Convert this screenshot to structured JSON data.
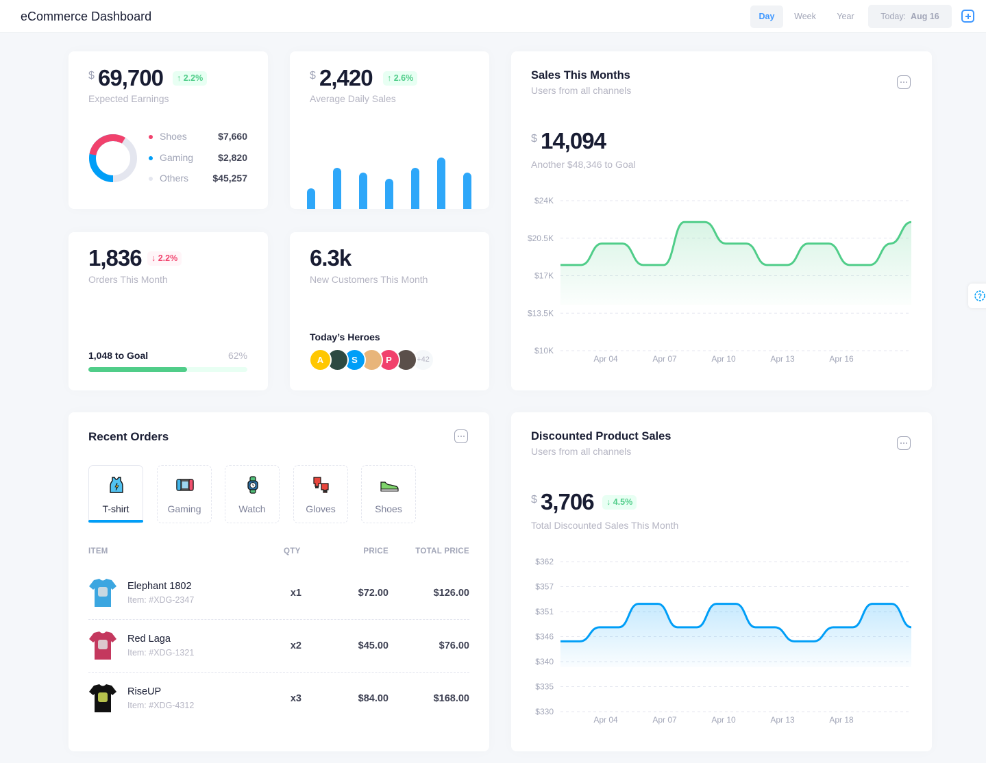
{
  "header": {
    "title": "eCommerce Dashboard",
    "ranges": [
      "Day",
      "Week",
      "Year"
    ],
    "active_range": "Day",
    "today_label": "Today:",
    "today_value": "Aug 16"
  },
  "earnings": {
    "currency": "$",
    "value": "69,700",
    "change": "2.2%",
    "label": "Expected Earnings",
    "legend": [
      {
        "name": "Shoes",
        "value": "$7,660",
        "color": "#f1416c"
      },
      {
        "name": "Gaming",
        "value": "$2,820",
        "color": "#009ef7"
      },
      {
        "name": "Others",
        "value": "$45,257",
        "color": "#e4e6ef"
      }
    ]
  },
  "daily_sales": {
    "currency": "$",
    "value": "2,420",
    "change": "2.6%",
    "label": "Average Daily Sales",
    "bars": [
      30,
      60,
      53,
      44,
      60,
      75,
      53
    ]
  },
  "orders": {
    "value": "1,836",
    "change": "2.2%",
    "label": "Orders This Month",
    "goal_label": "1,048 to Goal",
    "percent_label": "62%",
    "progress": 0.62
  },
  "customers": {
    "value": "6.3k",
    "label": "New Customers This Month",
    "heroes_title": "Today’s Heroes",
    "heroes": [
      {
        "initial": "A",
        "color": "#ffc700"
      },
      {
        "initial": "",
        "color": "#2d4a42"
      },
      {
        "initial": "S",
        "color": "#009ef7"
      },
      {
        "initial": "",
        "color": "#e8b57a"
      },
      {
        "initial": "P",
        "color": "#f1416c"
      },
      {
        "initial": "",
        "color": "#5a4f4a"
      }
    ],
    "more": "+42"
  },
  "sales_month": {
    "title": "Sales This Months",
    "subtitle": "Users from all channels",
    "currency": "$",
    "value": "14,094",
    "note": "Another $48,346 to Goal"
  },
  "recent_orders": {
    "title": "Recent Orders",
    "tabs": [
      {
        "label": "T-shirt",
        "icon": "tank-top-icon"
      },
      {
        "label": "Gaming",
        "icon": "game-console-icon"
      },
      {
        "label": "Watch",
        "icon": "smartwatch-icon"
      },
      {
        "label": "Gloves",
        "icon": "boxing-gloves-icon"
      },
      {
        "label": "Shoes",
        "icon": "sneaker-icon"
      }
    ],
    "active_tab": "T-shirt",
    "columns": [
      "ITEM",
      "QTY",
      "PRICE",
      "TOTAL PRICE"
    ],
    "rows": [
      {
        "name": "Elephant 1802",
        "sku": "Item: #XDG-2347",
        "qty": "x1",
        "price": "$72.00",
        "total": "$126.00",
        "color": "#3ba6e0"
      },
      {
        "name": "Red Laga",
        "sku": "Item: #XDG-1321",
        "qty": "x2",
        "price": "$45.00",
        "total": "$76.00",
        "color": "#c4385e"
      },
      {
        "name": "RiseUP",
        "sku": "Item: #XDG-4312",
        "qty": "x3",
        "price": "$84.00",
        "total": "$168.00",
        "color": "#111111"
      }
    ]
  },
  "discounted": {
    "title": "Discounted Product Sales",
    "subtitle": "Users from all channels",
    "currency": "$",
    "value": "3,706",
    "change": "4.5%",
    "note": "Total Discounted Sales This Month"
  },
  "chart_data": [
    {
      "type": "area",
      "title": "Sales This Months",
      "color": "#50cd89",
      "x_ticks": [
        "Apr 04",
        "Apr 07",
        "Apr 10",
        "Apr 13",
        "Apr 16"
      ],
      "y_ticks": [
        "$24K",
        "$20.5K",
        "$17K",
        "$13.5K",
        "$10K"
      ],
      "ylim": [
        10000,
        24000
      ],
      "values": [
        18000,
        18000,
        20000,
        20000,
        18000,
        18000,
        22000,
        22000,
        20000,
        20000,
        18000,
        18000,
        20000,
        20000,
        18000,
        18000,
        20000,
        22000
      ]
    },
    {
      "type": "area",
      "title": "Discounted Product Sales",
      "color": "#009ef7",
      "x_ticks": [
        "Apr 04",
        "Apr 07",
        "Apr 10",
        "Apr 13",
        "Apr 18"
      ],
      "y_ticks": [
        "$362",
        "$357",
        "$351",
        "$346",
        "$340",
        "$335",
        "$330"
      ],
      "ylim": [
        330,
        362
      ],
      "values": [
        345,
        345,
        348,
        348,
        353,
        353,
        348,
        348,
        353,
        353,
        348,
        348,
        345,
        345,
        348,
        348,
        353,
        353,
        348
      ]
    }
  ]
}
